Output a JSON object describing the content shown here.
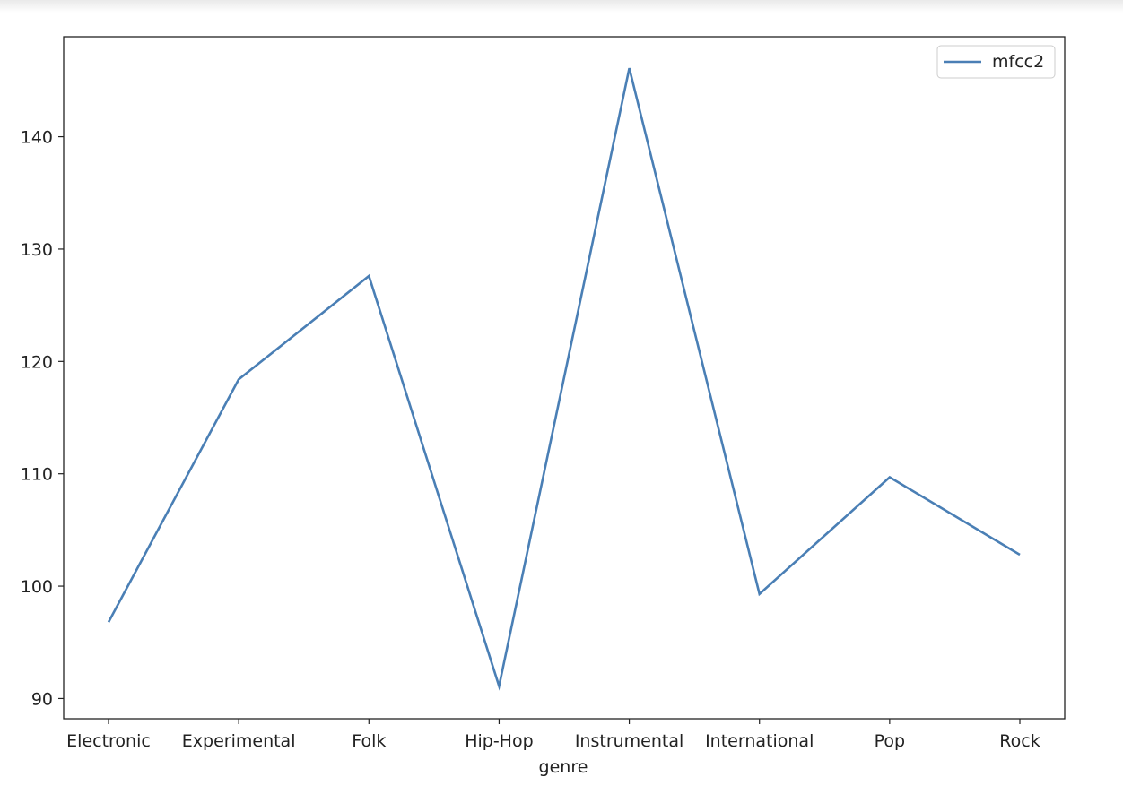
{
  "chart_data": {
    "type": "line",
    "title": "",
    "xlabel": "genre",
    "ylabel": "",
    "categories": [
      "Electronic",
      "Experimental",
      "Folk",
      "Hip-Hop",
      "Instrumental",
      "International",
      "Pop",
      "Rock"
    ],
    "series": [
      {
        "name": "mfcc2",
        "values": [
          96.8,
          118.4,
          127.6,
          91.1,
          146.1,
          99.3,
          109.7,
          102.8
        ],
        "color": "#4a7fb5"
      }
    ],
    "ylim": [
      88.2,
      148.9
    ],
    "yticks": [
      90,
      100,
      110,
      120,
      130,
      140
    ],
    "ytick_labels": [
      "90",
      "100",
      "110",
      "120",
      "130",
      "140"
    ],
    "legend_position": "top-right",
    "grid": false
  }
}
